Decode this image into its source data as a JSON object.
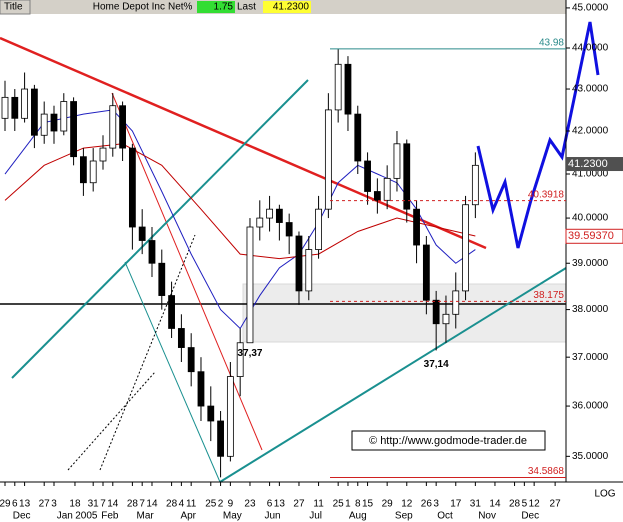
{
  "header": {
    "title": "Title",
    "name": "Home Depot Inc",
    "net_label": "Net%",
    "net_value": 1.75,
    "last_label": "Last",
    "last_value": "41.2300"
  },
  "chart_data": {
    "type": "candlestick",
    "log_scale": true,
    "ylim": [
      34.5,
      45.2
    ],
    "xlim": [
      -0.51,
      57.25
    ],
    "yticks": [
      {
        "value": 45,
        "label": "45.0000"
      },
      {
        "value": 44,
        "label": "44.0000"
      },
      {
        "value": 43,
        "label": "43.0000"
      },
      {
        "value": 42,
        "label": "42.0000"
      },
      {
        "value": 41,
        "label": "41.0000"
      },
      {
        "value": 40,
        "label": "40.0000"
      },
      {
        "value": 39,
        "label": "39.0000"
      },
      {
        "value": 38,
        "label": "38.0000"
      },
      {
        "value": 37,
        "label": "37.0000"
      },
      {
        "value": 36,
        "label": "36.0000"
      },
      {
        "value": 35,
        "label": "35.0000"
      }
    ],
    "xticks": [
      {
        "value": 0,
        "label": "29"
      },
      {
        "value": 1,
        "label": "6"
      },
      {
        "value": 2,
        "label": "13"
      },
      {
        "value": 4,
        "label": "27"
      },
      {
        "value": 5,
        "label": "3"
      },
      {
        "value": 7.14,
        "label": "18"
      },
      {
        "value": 9,
        "label": "31"
      },
      {
        "value": 10,
        "label": "7"
      },
      {
        "value": 11,
        "label": "14"
      },
      {
        "value": 13,
        "label": "28"
      },
      {
        "value": 14,
        "label": "7"
      },
      {
        "value": 15,
        "label": "14"
      },
      {
        "value": 17,
        "label": "28"
      },
      {
        "value": 18,
        "label": "4"
      },
      {
        "value": 19,
        "label": "11"
      },
      {
        "value": 21,
        "label": "25"
      },
      {
        "value": 22,
        "label": "2"
      },
      {
        "value": 23,
        "label": "9"
      },
      {
        "value": 25,
        "label": "23"
      },
      {
        "value": 27,
        "label": "6"
      },
      {
        "value": 28,
        "label": "13"
      },
      {
        "value": 30,
        "label": "27"
      },
      {
        "value": 32,
        "label": "11"
      },
      {
        "value": 34,
        "label": "25"
      },
      {
        "value": 35,
        "label": "1"
      },
      {
        "value": 36,
        "label": "8"
      },
      {
        "value": 37,
        "label": "15"
      },
      {
        "value": 39,
        "label": "29"
      },
      {
        "value": 41,
        "label": "12"
      },
      {
        "value": 43,
        "label": "26"
      },
      {
        "value": 44,
        "label": "3"
      },
      {
        "value": 46,
        "label": "17"
      },
      {
        "value": 48,
        "label": "31"
      },
      {
        "value": 50,
        "label": "14"
      },
      {
        "value": 52,
        "label": "28"
      },
      {
        "value": 53,
        "label": "5"
      },
      {
        "value": 54,
        "label": "12"
      },
      {
        "value": 56.14,
        "label": "27"
      }
    ],
    "months": [
      {
        "value": 1.7,
        "label": "Dec"
      },
      {
        "value": 6.1,
        "label": "Jan"
      },
      {
        "value": 10.7,
        "label": "Feb"
      },
      {
        "value": 14.3,
        "label": "Mar"
      },
      {
        "value": 18.7,
        "label": "Apr"
      },
      {
        "value": 23.2,
        "label": "May"
      },
      {
        "value": 27.3,
        "label": "Jun"
      },
      {
        "value": 31.7,
        "label": "Jul"
      },
      {
        "value": 36,
        "label": "Aug"
      },
      {
        "value": 40.7,
        "label": "Sep"
      },
      {
        "value": 44.9,
        "label": "Oct"
      },
      {
        "value": 49.2,
        "label": "Nov"
      },
      {
        "value": 53.6,
        "label": "Dec"
      }
    ],
    "year_label": {
      "value": 8.3,
      "label": "2005"
    },
    "scale_label": "LOG",
    "ohlc": [
      [
        42.3,
        43.2,
        42.0,
        42.8
      ],
      [
        42.8,
        43.0,
        42.0,
        42.3
      ],
      [
        42.3,
        43.4,
        42.2,
        43.0
      ],
      [
        43.0,
        43.1,
        41.6,
        41.9
      ],
      [
        41.9,
        42.7,
        41.7,
        42.4
      ],
      [
        42.4,
        42.6,
        41.7,
        42.0
      ],
      [
        42.0,
        42.9,
        41.9,
        42.7
      ],
      [
        42.7,
        42.8,
        41.2,
        41.4
      ],
      [
        41.4,
        41.6,
        40.5,
        40.8
      ],
      [
        40.8,
        41.6,
        40.6,
        41.3
      ],
      [
        41.3,
        41.9,
        41.1,
        41.6
      ],
      [
        41.6,
        42.9,
        41.4,
        42.6
      ],
      [
        42.6,
        42.7,
        41.3,
        41.6
      ],
      [
        41.6,
        41.7,
        39.3,
        39.8
      ],
      [
        39.8,
        40.2,
        39.2,
        39.5
      ],
      [
        39.5,
        39.8,
        38.7,
        39.0
      ],
      [
        39.0,
        39.3,
        38.0,
        38.3
      ],
      [
        38.3,
        38.6,
        37.4,
        37.6
      ],
      [
        37.6,
        37.9,
        36.9,
        37.2
      ],
      [
        37.2,
        37.5,
        36.4,
        36.7
      ],
      [
        36.7,
        37.0,
        35.7,
        36.0
      ],
      [
        36.0,
        36.4,
        35.3,
        35.7
      ],
      [
        35.7,
        35.9,
        34.59,
        35.0
      ],
      [
        35.0,
        36.9,
        34.9,
        36.6
      ],
      [
        36.6,
        37.6,
        36.2,
        37.3
      ],
      [
        37.3,
        40.0,
        37.37,
        39.8
      ],
      [
        39.8,
        40.4,
        39.5,
        40.0
      ],
      [
        40.0,
        40.5,
        39.7,
        40.2
      ],
      [
        40.2,
        40.3,
        39.5,
        39.9
      ],
      [
        39.9,
        40.1,
        39.2,
        39.6
      ],
      [
        39.6,
        39.7,
        38.1,
        38.4
      ],
      [
        38.4,
        39.6,
        38.2,
        39.3
      ],
      [
        39.3,
        40.5,
        39.1,
        40.2
      ],
      [
        40.2,
        42.9,
        40.0,
        42.5
      ],
      [
        42.5,
        43.98,
        42.2,
        43.6
      ],
      [
        43.6,
        43.8,
        42.0,
        42.4
      ],
      [
        42.4,
        42.6,
        41.0,
        41.3
      ],
      [
        41.3,
        41.5,
        40.3,
        40.6
      ],
      [
        40.6,
        40.9,
        40.1,
        40.4
      ],
      [
        40.4,
        41.2,
        40.2,
        40.9
      ],
      [
        40.9,
        42.0,
        40.6,
        41.7
      ],
      [
        41.7,
        41.8,
        39.9,
        40.2
      ],
      [
        40.2,
        40.4,
        39.0,
        39.4
      ],
      [
        39.4,
        39.6,
        37.9,
        38.2
      ],
      [
        38.2,
        38.4,
        37.14,
        37.7
      ],
      [
        37.7,
        38.3,
        37.3,
        37.9
      ],
      [
        37.9,
        38.8,
        37.6,
        38.4
      ],
      [
        38.4,
        40.5,
        38.2,
        40.3
      ],
      [
        40.3,
        41.5,
        40.0,
        41.2
      ]
    ],
    "moving_averages": [
      {
        "color": "#2020c0",
        "x": [
          0,
          4,
          8,
          11,
          13,
          16,
          19,
          22,
          24,
          26,
          28,
          30,
          32,
          34,
          36,
          38,
          40,
          42,
          44,
          46,
          48
        ],
        "values": [
          41.0,
          42.2,
          42.4,
          42.5,
          42.0,
          40.6,
          39.2,
          38.0,
          37.6,
          38.3,
          38.9,
          39.2,
          39.9,
          40.8,
          41.2,
          41.0,
          40.8,
          40.2,
          39.4,
          39.0,
          39.3
        ]
      },
      {
        "color": "#c00000",
        "x": [
          0,
          4,
          8,
          12,
          16,
          20,
          24,
          28,
          32,
          36,
          40,
          44,
          48
        ],
        "values": [
          40.4,
          41.2,
          41.6,
          41.7,
          41.2,
          40.2,
          39.2,
          39.1,
          39.2,
          39.7,
          40.0,
          39.8,
          39.6
        ]
      }
    ],
    "levels": [
      {
        "value": 43.98,
        "color": "#2a8a8a",
        "dashed": false
      },
      {
        "value": 40.3918,
        "color": "#d02020",
        "dashed": true
      },
      {
        "value": 38.175,
        "color": "#d02020",
        "dashed": true
      },
      {
        "value": 34.5868,
        "color": "#d02020",
        "dashed": false
      }
    ],
    "lows": [
      {
        "x": 25,
        "value": 37.37,
        "label": "37,37"
      },
      {
        "x": 44,
        "value": 37.14,
        "label": "37,14"
      }
    ],
    "last": {
      "value": 41.23,
      "label": "41.2300"
    },
    "ma_last": {
      "value": 39.5937,
      "label": "39.59370"
    },
    "watermark": "© http://www.godmode-trader.de"
  }
}
